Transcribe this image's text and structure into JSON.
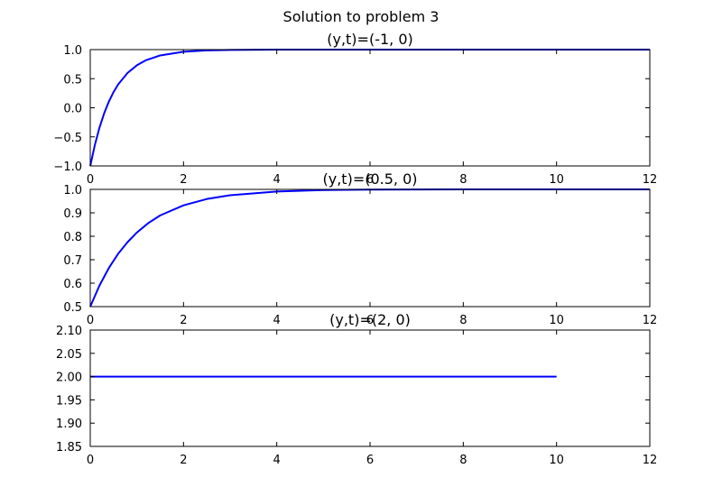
{
  "figure": {
    "suptitle": "Solution to problem 3",
    "line_color": "#0000ff",
    "axis_color": "#000000",
    "background": "#ffffff"
  },
  "chart_data": [
    {
      "type": "line",
      "title": "(y,t)=(-1, 0)",
      "xlim": [
        0,
        12
      ],
      "ylim": [
        -1.0,
        1.0
      ],
      "xticks": [
        0,
        2,
        4,
        6,
        8,
        10,
        12
      ],
      "xtick_labels": [
        "0",
        "2",
        "4",
        "6",
        "8",
        "10",
        "12"
      ],
      "yticks": [
        -1.0,
        -0.5,
        0.0,
        0.5,
        1.0
      ],
      "ytick_labels": [
        "−1.0",
        "−0.5",
        "0.0",
        "0.5",
        "1.0"
      ],
      "series": [
        {
          "x": [
            0,
            0.1,
            0.2,
            0.3,
            0.4,
            0.5,
            0.6,
            0.8,
            1.0,
            1.2,
            1.5,
            2.0,
            2.5,
            3.0,
            4.0,
            5.0,
            6.0,
            8.0,
            10.0,
            12.0
          ],
          "y": [
            -1.0,
            -0.635,
            -0.336,
            -0.092,
            0.108,
            0.27,
            0.403,
            0.599,
            0.73,
            0.819,
            0.9,
            0.963,
            0.986,
            0.995,
            0.999,
            1.0,
            1.0,
            1.0,
            1.0,
            1.0
          ]
        }
      ]
    },
    {
      "type": "line",
      "title": "(y,t)=(0.5, 0)",
      "xlim": [
        0,
        12
      ],
      "ylim": [
        0.5,
        1.0
      ],
      "xticks": [
        0,
        2,
        4,
        6,
        8,
        10,
        12
      ],
      "xtick_labels": [
        "0",
        "2",
        "4",
        "6",
        "8",
        "10",
        "12"
      ],
      "yticks": [
        0.5,
        0.6,
        0.7,
        0.8,
        0.9,
        1.0
      ],
      "ytick_labels": [
        "0.5",
        "0.6",
        "0.7",
        "0.8",
        "0.9",
        "1.0"
      ],
      "series": [
        {
          "x": [
            0,
            0.2,
            0.4,
            0.6,
            0.8,
            1.0,
            1.25,
            1.5,
            2.0,
            2.5,
            3.0,
            4.0,
            5.0,
            6.0,
            8.0,
            10.0,
            12.0
          ],
          "y": [
            0.5,
            0.591,
            0.665,
            0.726,
            0.775,
            0.816,
            0.857,
            0.889,
            0.932,
            0.959,
            0.975,
            0.991,
            0.997,
            0.999,
            1.0,
            1.0,
            1.0
          ]
        }
      ]
    },
    {
      "type": "line",
      "title": "(y,t)=(2, 0)",
      "xlim": [
        0,
        12
      ],
      "ylim": [
        1.85,
        2.1
      ],
      "xticks": [
        0,
        2,
        4,
        6,
        8,
        10,
        12
      ],
      "xtick_labels": [
        "0",
        "2",
        "4",
        "6",
        "8",
        "10",
        "12"
      ],
      "yticks": [
        1.85,
        1.9,
        1.95,
        2.0,
        2.05,
        2.1
      ],
      "ytick_labels": [
        "1.85",
        "1.90",
        "1.95",
        "2.00",
        "2.05",
        "2.10"
      ],
      "series": [
        {
          "x": [
            0,
            10
          ],
          "y": [
            2.0,
            2.0
          ]
        }
      ]
    }
  ]
}
